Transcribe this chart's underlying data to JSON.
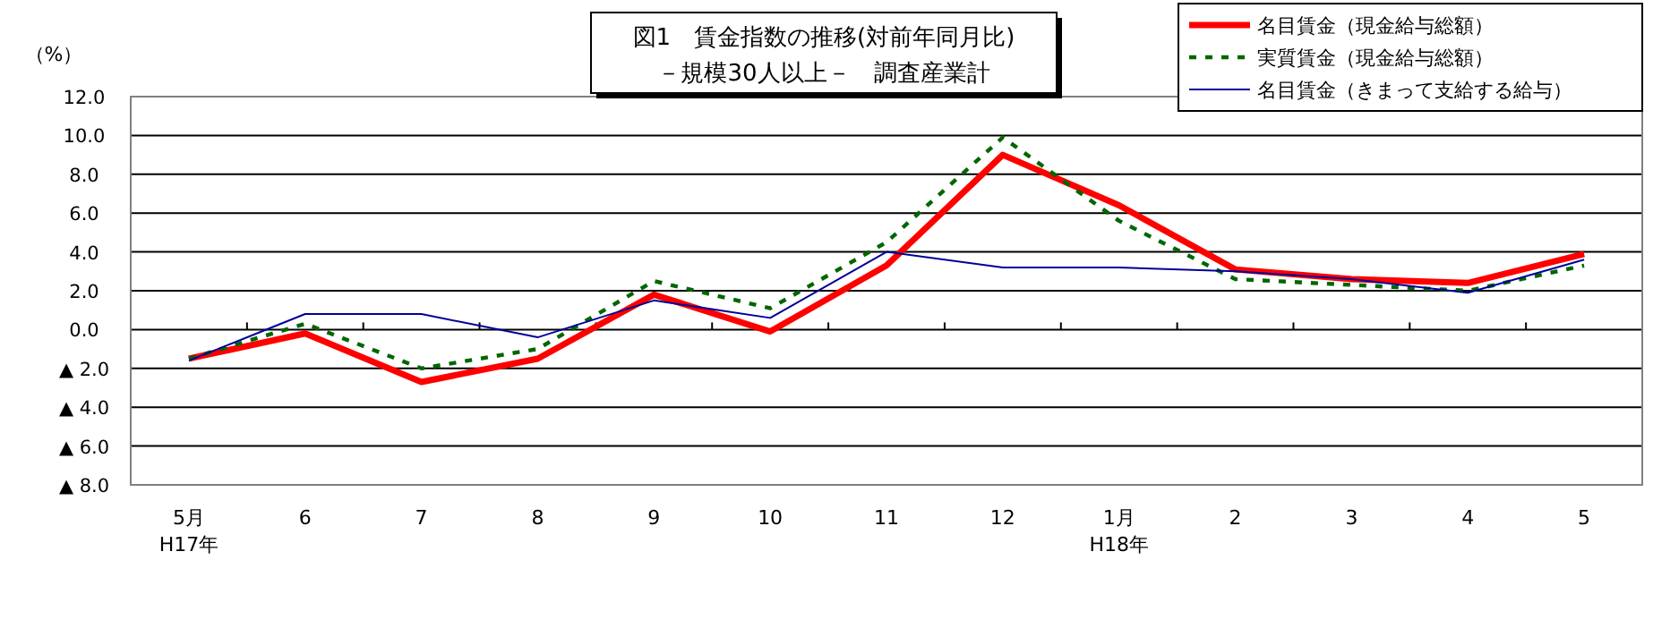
{
  "chart_data": {
    "type": "line",
    "title": "図1　賃金指数の推移(対前年同月比)",
    "subtitle": "－規模30人以上－　調査産業計",
    "ylabel": "（%）",
    "categories": [
      "5月\nH17年",
      "6",
      "7",
      "8",
      "9",
      "10",
      "11",
      "12",
      "1月\nH18年",
      "2",
      "3",
      "4",
      "5"
    ],
    "series": [
      {
        "name": "名目賃金（現金給与総額）",
        "color": "#ff0000",
        "line_style": "solid",
        "values": [
          -1.5,
          -0.2,
          -2.7,
          -1.5,
          1.8,
          -0.1,
          3.3,
          9.0,
          6.4,
          3.1,
          2.6,
          2.4,
          3.9
        ]
      },
      {
        "name": "実質賃金（現金給与総額）",
        "color": "#006600",
        "line_style": "dashed",
        "values": [
          -1.5,
          0.3,
          -2.0,
          -1.0,
          2.5,
          1.1,
          4.5,
          9.9,
          5.6,
          2.6,
          2.3,
          2.0,
          3.3
        ]
      },
      {
        "name": "名目賃金（きまって支給する給与）",
        "color": "#000099",
        "line_style": "solid",
        "values": [
          -1.6,
          0.8,
          0.8,
          -0.4,
          1.5,
          0.6,
          4.0,
          3.2,
          3.2,
          3.0,
          2.6,
          1.9,
          3.6
        ]
      }
    ],
    "ylim": [
      -8,
      12
    ],
    "yticks": [
      {
        "value": 12,
        "label": "12.0"
      },
      {
        "value": 10,
        "label": "10.0"
      },
      {
        "value": 8,
        "label": "8.0"
      },
      {
        "value": 6,
        "label": "6.0"
      },
      {
        "value": 4,
        "label": "4.0"
      },
      {
        "value": 2,
        "label": "2.0"
      },
      {
        "value": 0,
        "label": "0.0"
      },
      {
        "value": -2,
        "label": "▲ 2.0"
      },
      {
        "value": -4,
        "label": "▲ 4.0"
      },
      {
        "value": -6,
        "label": "▲ 6.0"
      },
      {
        "value": -8,
        "label": "▲ 8.0"
      }
    ],
    "grid": "y",
    "legend": "top right",
    "marker": "none"
  }
}
